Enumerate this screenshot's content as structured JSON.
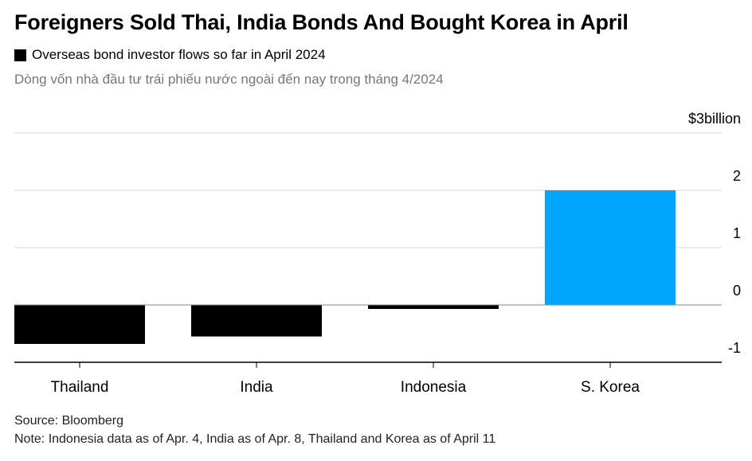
{
  "title": "Foreigners Sold Thai, India Bonds And Bought Korea in April",
  "legend": {
    "label": "Overseas bond investor flows so far in April 2024",
    "color": "#000000"
  },
  "subtitle": "Dòng vốn nhà đầu tư trái phiếu nước ngoài đến nay trong tháng 4/2024",
  "source": "Source: Bloomberg",
  "note": "Note: Indonesia data as of Apr. 4, India as of Apr. 8, Thailand and Korea as of April 11",
  "chart_data": {
    "type": "bar",
    "categories": [
      "Thailand",
      "India",
      "Indonesia",
      "S. Korea"
    ],
    "values": [
      -0.68,
      -0.55,
      -0.07,
      2.0
    ],
    "colors": [
      "#000000",
      "#000000",
      "#000000",
      "#00a6ff"
    ],
    "ylim": [
      -1,
      3
    ],
    "yticks": [
      -1,
      0,
      1,
      2,
      3
    ],
    "ytick_labels": [
      "-1",
      "0",
      "1",
      "2",
      "$3billion"
    ],
    "title": "Foreigners Sold Thai, India Bonds And Bought Korea in April",
    "xlabel": "",
    "ylabel": "",
    "grid": true,
    "legend_position": "top-left"
  }
}
